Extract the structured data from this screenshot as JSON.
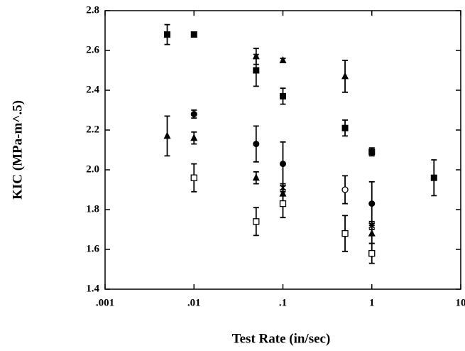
{
  "chart_data": {
    "type": "scatter",
    "x_label": "Test Rate (in/sec)",
    "y_label": "KIC (MPa-m^.5)",
    "xlog": true,
    "xlim": [
      0.001,
      10
    ],
    "xticks": [
      {
        "value": 0.001,
        "label": ".001"
      },
      {
        "value": 0.01,
        "label": ".01"
      },
      {
        "value": 0.1,
        "label": ".1"
      },
      {
        "value": 1,
        "label": "1"
      },
      {
        "value": 10,
        "label": "10"
      }
    ],
    "ylim": [
      1.4,
      2.8
    ],
    "yticks": [
      {
        "value": 1.4,
        "label": "1.4"
      },
      {
        "value": 1.6,
        "label": "1.6"
      },
      {
        "value": 1.8,
        "label": "1.8"
      },
      {
        "value": 2.0,
        "label": "2.0"
      },
      {
        "value": 2.2,
        "label": "2.2"
      },
      {
        "value": 2.4,
        "label": "2.4"
      },
      {
        "value": 2.6,
        "label": "2.6"
      },
      {
        "value": 2.8,
        "label": "2.8"
      }
    ],
    "series": [
      {
        "marker": "filled-square",
        "color": "#000000",
        "x": [
          0.005,
          0.01,
          0.05,
          0.1,
          0.5,
          1,
          5
        ],
        "values": [
          2.68,
          2.68,
          2.5,
          2.37,
          2.21,
          2.09,
          1.96
        ],
        "errors": [
          0.05,
          0.01,
          0.08,
          0.04,
          0.04,
          0.02,
          0.09
        ]
      },
      {
        "marker": "filled-triangle",
        "color": "#000000",
        "x": [
          0.05,
          0.1,
          0.5
        ],
        "values": [
          2.57,
          2.55,
          2.47
        ],
        "errors": [
          0.04,
          0.01,
          0.08
        ]
      },
      {
        "marker": "filled-triangle",
        "color": "#000000",
        "x": [
          0.005,
          0.01,
          0.05,
          0.1,
          1
        ],
        "values": [
          2.17,
          2.16,
          1.96,
          1.88,
          1.68
        ],
        "errors": [
          0.1,
          0.03,
          0.03,
          0.04,
          0.05
        ]
      },
      {
        "marker": "filled-circle",
        "color": "#000000",
        "x": [
          0.01,
          0.05,
          0.1,
          1
        ],
        "values": [
          2.28,
          2.13,
          2.03,
          1.83
        ],
        "errors": [
          0.02,
          0.09,
          0.11,
          0.11
        ]
      },
      {
        "marker": "open-circle",
        "color": "#000000",
        "x": [
          0.5
        ],
        "values": [
          1.9
        ],
        "errors": [
          0.07
        ]
      },
      {
        "marker": "open-square",
        "color": "#000000",
        "x": [
          0.01,
          0.05,
          0.1,
          0.5,
          1
        ],
        "values": [
          1.96,
          1.74,
          1.83,
          1.68,
          1.58
        ],
        "errors": [
          0.07,
          0.07,
          0.07,
          0.09,
          0.05
        ]
      },
      {
        "marker": "cross",
        "color": "#000000",
        "x": [
          0.1,
          1
        ],
        "values": [
          1.91,
          1.72
        ],
        "errors": [
          0.02,
          0.02
        ]
      }
    ]
  }
}
